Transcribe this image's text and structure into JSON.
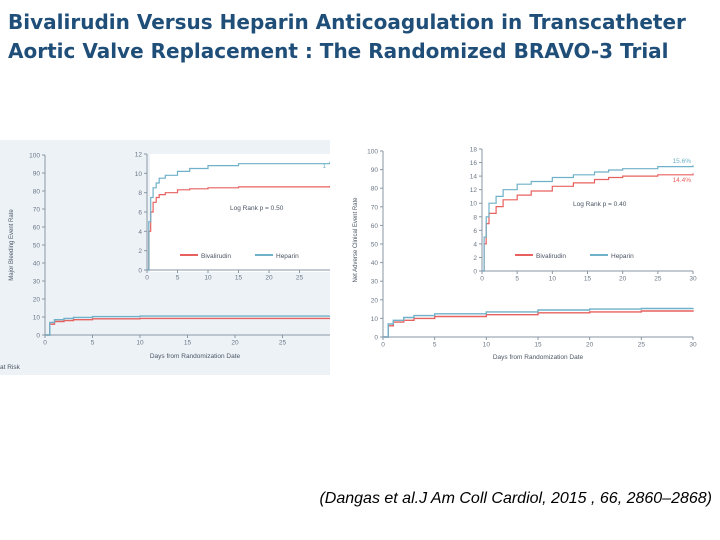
{
  "slide": {
    "title": "Bivalirudin Versus Heparin Anticoagulation in Transcatheter Aortic Valve Replacement : The Randomized BRAVO-3 Trial",
    "citation": "(Dangas et al.J Am Coll Cardiol, 2015 , 66,  2860–2868)"
  },
  "colors": {
    "bivalirudin": "#e8615f",
    "heparin": "#6fb1c8",
    "title": "#1f4e79"
  },
  "chart_data": [
    {
      "type": "line",
      "panel": "left",
      "ylabel": "Major Bleeding Event Rate",
      "xlabel": "Days from Randomization Date",
      "xlim": [
        0,
        30
      ],
      "ylim": [
        0,
        100
      ],
      "xticks": [
        0,
        5,
        10,
        15,
        20,
        25
      ],
      "yticks": [
        0,
        10,
        20,
        30,
        40,
        50,
        60,
        70,
        80,
        90,
        100
      ],
      "at_risk_label": "at Risk",
      "series": [
        {
          "name": "Bivalirudin",
          "x": [
            0,
            0.5,
            1,
            2,
            3,
            5,
            10,
            30
          ],
          "y": [
            0,
            6,
            7.5,
            8,
            8.5,
            9,
            9.2,
            9.3
          ]
        },
        {
          "name": "Heparin",
          "x": [
            0,
            0.5,
            1,
            2,
            3,
            5,
            10,
            30
          ],
          "y": [
            0,
            7,
            8.5,
            9.2,
            9.8,
            10.2,
            10.5,
            10.8
          ]
        }
      ],
      "inset": {
        "xlim": [
          0,
          30
        ],
        "ylim": [
          0,
          12
        ],
        "xticks": [
          0,
          5,
          10,
          15,
          20,
          25
        ],
        "yticks": [
          0,
          2,
          4,
          6,
          8,
          10,
          12
        ],
        "annotation": "Log Rank p = 0.50",
        "end_label_heparin": "1",
        "legend": [
          "Bivalirudin",
          "Heparin"
        ],
        "series": [
          {
            "name": "Bivalirudin",
            "x": [
              0,
              0.3,
              0.6,
              1,
              1.5,
              2,
              3,
              5,
              7,
              10,
              15,
              30
            ],
            "y": [
              0,
              4,
              6,
              7,
              7.5,
              7.8,
              8,
              8.3,
              8.4,
              8.5,
              8.6,
              8.7
            ]
          },
          {
            "name": "Heparin",
            "x": [
              0,
              0.3,
              0.6,
              1,
              1.5,
              2,
              3,
              5,
              7,
              10,
              15,
              30
            ],
            "y": [
              0,
              5,
              7.5,
              8.5,
              9,
              9.5,
              9.8,
              10.2,
              10.5,
              10.8,
              11,
              11.2
            ]
          }
        ]
      }
    },
    {
      "type": "line",
      "panel": "right",
      "ylabel": "Net Adverse Clinical Event Rate",
      "xlabel": "Days from Randomization Date",
      "xlim": [
        0,
        30
      ],
      "ylim": [
        0,
        100
      ],
      "xticks": [
        0,
        5,
        10,
        15,
        20,
        25,
        30
      ],
      "yticks": [
        0,
        10,
        20,
        30,
        40,
        50,
        60,
        70,
        80,
        90,
        100
      ],
      "series": [
        {
          "name": "Bivalirudin",
          "x": [
            0,
            0.5,
            1,
            2,
            3,
            5,
            10,
            15,
            20,
            25,
            30
          ],
          "y": [
            0,
            6,
            8,
            9,
            10,
            11,
            12,
            13,
            13.5,
            14,
            14.4
          ]
        },
        {
          "name": "Heparin",
          "x": [
            0,
            0.5,
            1,
            2,
            3,
            5,
            10,
            15,
            20,
            25,
            30
          ],
          "y": [
            0,
            7,
            9,
            10.5,
            11.5,
            12.5,
            13.5,
            14.5,
            15,
            15.3,
            15.6
          ]
        }
      ],
      "inset": {
        "xlim": [
          0,
          30
        ],
        "ylim": [
          0,
          18
        ],
        "xticks": [
          0,
          5,
          10,
          15,
          20,
          25,
          30
        ],
        "yticks": [
          0,
          2,
          4,
          6,
          8,
          10,
          12,
          14,
          16,
          18
        ],
        "annotation": "Log Rank p = 0.40",
        "legend": [
          "Bivalirudin",
          "Heparin"
        ],
        "end_labels": {
          "Heparin": "15.6%",
          "Bivalirudin": "14.4%"
        },
        "series": [
          {
            "name": "Bivalirudin",
            "x": [
              0,
              0.3,
              0.6,
              1,
              2,
              3,
              5,
              7,
              10,
              13,
              16,
              18,
              20,
              25,
              30
            ],
            "y": [
              0,
              4,
              7,
              8.5,
              9.5,
              10.5,
              11.2,
              11.8,
              12.5,
              13,
              13.5,
              13.8,
              14,
              14.2,
              14.4
            ]
          },
          {
            "name": "Heparin",
            "x": [
              0,
              0.3,
              0.6,
              1,
              2,
              3,
              5,
              7,
              10,
              13,
              16,
              18,
              20,
              25,
              30
            ],
            "y": [
              0,
              5,
              8,
              10,
              11,
              12,
              12.8,
              13.2,
              13.8,
              14.2,
              14.6,
              14.9,
              15.1,
              15.4,
              15.6
            ]
          }
        ]
      }
    }
  ]
}
